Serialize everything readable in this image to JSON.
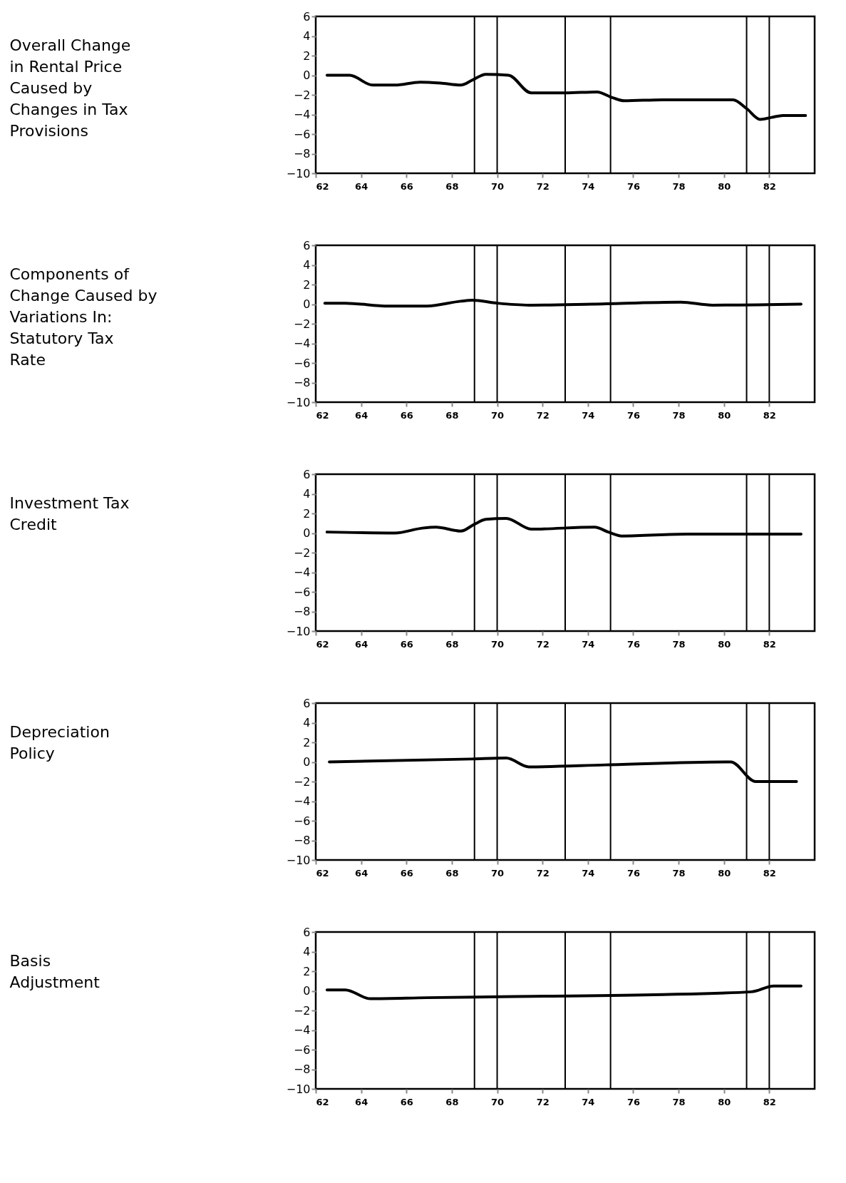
{
  "chart_data": [
    {
      "type": "line",
      "ylabel": "Overall Change in Rental Price Caused by Changes in Tax Provisions",
      "xlim": [
        62,
        84
      ],
      "ylim": [
        -10,
        6
      ],
      "xticks": [
        62,
        64,
        66,
        68,
        70,
        72,
        74,
        76,
        78,
        80,
        82
      ],
      "yticks": [
        -10,
        -8,
        -6,
        -4,
        -2,
        0,
        2,
        4,
        6
      ],
      "x": [
        62.5,
        63.5,
        64.5,
        65.5,
        66.6,
        67.5,
        68.4,
        68.9,
        69.5,
        70.5,
        71.5,
        73.0,
        74.4,
        75.1,
        75.6,
        77.3,
        80.4,
        81.0,
        81.6,
        82.1,
        82.6,
        83.6
      ],
      "series": [
        {
          "color": "#000000",
          "values": [
            0.0,
            0.0,
            -1.0,
            -1.0,
            -0.7,
            -0.8,
            -1.0,
            -0.5,
            0.1,
            0.0,
            -1.8,
            -1.8,
            -1.7,
            -2.3,
            -2.6,
            -2.5,
            -2.5,
            -3.4,
            -4.5,
            -4.3,
            -4.1,
            -4.1
          ]
        }
      ],
      "ref_lines": [
        {
          "axis": "x",
          "value": 69,
          "color": "#000000"
        },
        {
          "axis": "x",
          "value": 70,
          "color": "#000000"
        },
        {
          "axis": "x",
          "value": 73,
          "color": "#000000"
        },
        {
          "axis": "x",
          "value": 75,
          "color": "#000000"
        },
        {
          "axis": "x",
          "value": 81,
          "color": "#000000"
        },
        {
          "axis": "x",
          "value": 82,
          "color": "#000000"
        }
      ]
    },
    {
      "type": "line",
      "ylabel": "Statutory Tax Rate",
      "annotations": [
        "Components of Change Caused by Variations In:"
      ],
      "xlim": [
        62,
        84
      ],
      "ylim": [
        -10,
        6
      ],
      "xticks": [
        62,
        64,
        66,
        68,
        70,
        72,
        74,
        76,
        78,
        80,
        82
      ],
      "yticks": [
        -10,
        -8,
        -6,
        -4,
        -2,
        0,
        2,
        4,
        6
      ],
      "x": [
        62.4,
        63.3,
        65.2,
        66.9,
        68.4,
        68.9,
        70.0,
        71.4,
        74.2,
        78.1,
        79.5,
        83.4
      ],
      "series": [
        {
          "color": "#000000",
          "values": [
            0.1,
            0.1,
            -0.2,
            -0.2,
            0.3,
            0.4,
            0.1,
            -0.1,
            0.0,
            0.2,
            -0.1,
            0.0
          ]
        }
      ],
      "ref_lines": [
        {
          "axis": "x",
          "value": 69,
          "color": "#000000"
        },
        {
          "axis": "x",
          "value": 70,
          "color": "#000000"
        },
        {
          "axis": "x",
          "value": 73,
          "color": "#000000"
        },
        {
          "axis": "x",
          "value": 75,
          "color": "#000000"
        },
        {
          "axis": "x",
          "value": 81,
          "color": "#000000"
        },
        {
          "axis": "x",
          "value": 82,
          "color": "#000000"
        }
      ]
    },
    {
      "type": "line",
      "ylabel": "Investment Tax Credit",
      "xlim": [
        62,
        84
      ],
      "ylim": [
        -10,
        6
      ],
      "xticks": [
        62,
        64,
        66,
        68,
        70,
        72,
        74,
        76,
        78,
        80,
        82
      ],
      "yticks": [
        -10,
        -8,
        -6,
        -4,
        -2,
        0,
        2,
        4,
        6
      ],
      "x": [
        62.5,
        65.5,
        66.7,
        67.3,
        68.4,
        69.0,
        69.5,
        70.4,
        71.5,
        74.3,
        74.9,
        75.5,
        78.4,
        83.4
      ],
      "series": [
        {
          "color": "#000000",
          "values": [
            0.1,
            0.0,
            0.5,
            0.6,
            0.2,
            0.9,
            1.4,
            1.5,
            0.4,
            0.6,
            0.1,
            -0.3,
            -0.1,
            -0.1
          ]
        }
      ],
      "ref_lines": [
        {
          "axis": "x",
          "value": 69,
          "color": "#000000"
        },
        {
          "axis": "x",
          "value": 70,
          "color": "#000000"
        },
        {
          "axis": "x",
          "value": 73,
          "color": "#000000"
        },
        {
          "axis": "x",
          "value": 75,
          "color": "#000000"
        },
        {
          "axis": "x",
          "value": 81,
          "color": "#000000"
        },
        {
          "axis": "x",
          "value": 82,
          "color": "#000000"
        }
      ]
    },
    {
      "type": "line",
      "ylabel": "Depreciation Policy",
      "xlim": [
        62,
        84
      ],
      "ylim": [
        -10,
        6
      ],
      "xticks": [
        62,
        64,
        66,
        68,
        70,
        72,
        74,
        76,
        78,
        80,
        82
      ],
      "yticks": [
        -10,
        -8,
        -6,
        -4,
        -2,
        0,
        2,
        4,
        6
      ],
      "x": [
        62.6,
        68.9,
        70.4,
        71.4,
        74.8,
        80.3,
        81.4,
        83.2
      ],
      "series": [
        {
          "color": "#000000",
          "values": [
            0.0,
            0.3,
            0.4,
            -0.5,
            -0.3,
            0.0,
            -2.0,
            -2.0
          ]
        }
      ],
      "ref_lines": [
        {
          "axis": "x",
          "value": 69,
          "color": "#000000"
        },
        {
          "axis": "x",
          "value": 70,
          "color": "#000000"
        },
        {
          "axis": "x",
          "value": 73,
          "color": "#000000"
        },
        {
          "axis": "x",
          "value": 75,
          "color": "#000000"
        },
        {
          "axis": "x",
          "value": 81,
          "color": "#000000"
        },
        {
          "axis": "x",
          "value": 82,
          "color": "#000000"
        }
      ]
    },
    {
      "type": "line",
      "ylabel": "Basis Adjustment",
      "xlim": [
        62,
        84
      ],
      "ylim": [
        -10,
        6
      ],
      "xticks": [
        62,
        64,
        66,
        68,
        70,
        72,
        74,
        76,
        78,
        80,
        82
      ],
      "yticks": [
        -10,
        -8,
        -6,
        -4,
        -2,
        0,
        2,
        4,
        6
      ],
      "x": [
        62.5,
        63.3,
        64.4,
        66.9,
        70.2,
        76.9,
        81.2,
        82.2,
        83.4
      ],
      "series": [
        {
          "color": "#000000",
          "values": [
            0.1,
            0.1,
            -0.8,
            -0.7,
            -0.6,
            -0.4,
            -0.1,
            0.5,
            0.5
          ]
        }
      ],
      "ref_lines": [
        {
          "axis": "x",
          "value": 69,
          "color": "#000000"
        },
        {
          "axis": "x",
          "value": 70,
          "color": "#000000"
        },
        {
          "axis": "x",
          "value": 73,
          "color": "#000000"
        },
        {
          "axis": "x",
          "value": 75,
          "color": "#000000"
        },
        {
          "axis": "x",
          "value": 81,
          "color": "#000000"
        },
        {
          "axis": "x",
          "value": 82,
          "color": "#000000"
        }
      ]
    }
  ]
}
